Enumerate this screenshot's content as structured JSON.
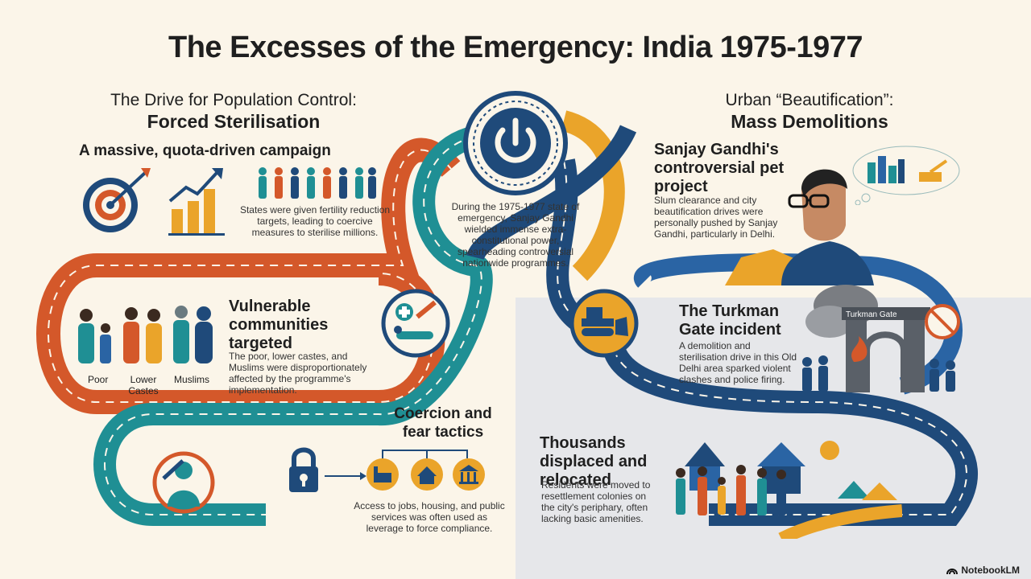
{
  "title": "The Excesses of the Emergency: India 1975-1977",
  "left": {
    "heading_line1": "The Drive for Population Control:",
    "heading_line2": "Forced Sterilisation",
    "campaign": {
      "title": "A massive, quota-driven campaign",
      "text": "States were given fertility reduction targets, leading to coercive measures to sterilise millions."
    },
    "vulnerable": {
      "title": "Vulnerable communities targeted",
      "text": "The poor, lower castes, and Muslims were disproportionately affected by the programme's implementation.",
      "labels": [
        "Poor",
        "Lower Castes",
        "Muslims"
      ]
    },
    "coercion": {
      "title": "Coercion and fear tactics",
      "text": "Access to jobs, housing, and public services was often used as leverage to force compliance."
    }
  },
  "center": {
    "text": "During the 1975-1977 state of emergency, Sanjay Gandhi wielded immense extra-constitutional power, spearheading controversial nationwide programmes."
  },
  "right": {
    "heading_line1": "Urban “Beautification”:",
    "heading_line2": "Mass Demolitions",
    "pet_project": {
      "title": "Sanjay Gandhi's controversial pet project",
      "text": "Slum clearance and city beautification drives were personally pushed by Sanjay Gandhi, particularly in Delhi."
    },
    "turkman": {
      "title": "The Turkman Gate incident",
      "text": "A demolition and sterilisation drive in this Old Delhi area sparked violent clashes and police firing.",
      "gate_label": "Turkman Gate"
    },
    "displaced": {
      "title": "Thousands displaced and relocated",
      "text": "Residents were moved to resettlement colonies on the city's periphary, often lacking basic amenities."
    }
  },
  "watermark": "NotebookLM",
  "colors": {
    "orange": "#d4582a",
    "teal": "#1f8f94",
    "navy": "#1f4a7a",
    "gold": "#eaa42a",
    "cream": "#fbf5e9"
  }
}
